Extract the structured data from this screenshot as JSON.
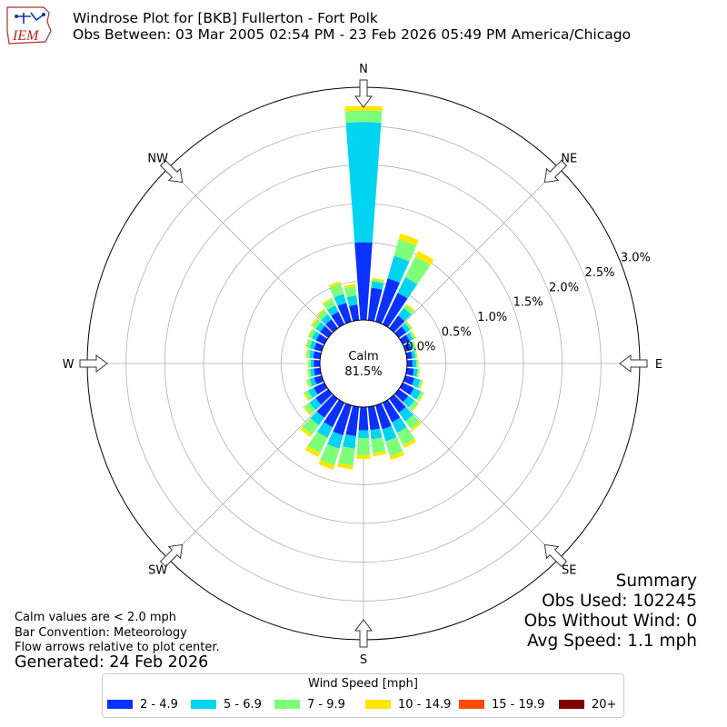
{
  "logo": {
    "text": "IEM"
  },
  "header": {
    "title": "Windrose Plot for [BKB] Fullerton - Fort Polk",
    "subtitle": "Obs Between: 03 Mar 2005 02:54 PM - 23 Feb 2026 05:49 PM America/Chicago"
  },
  "notes": {
    "calm_def": "Calm values are < 2.0 mph",
    "convention": "Bar Convention: Meteorology",
    "arrows": "Flow arrows relative to plot center.",
    "generated": "Generated: 24 Feb 2026"
  },
  "summary": {
    "heading": "Summary",
    "obs_used": "Obs Used: 102245",
    "obs_without_wind": "Obs Without Wind: 0",
    "avg_speed": "Avg Speed: 1.1 mph"
  },
  "chart_data": {
    "type": "windrose",
    "calm_label": "Calm",
    "calm_percent": "81.5%",
    "directions": [
      "N",
      "NE",
      "E",
      "SE",
      "S",
      "SW",
      "W",
      "NW"
    ],
    "radial_ticks": [
      "0.0%",
      "0.5%",
      "1.0%",
      "1.5%",
      "2.0%",
      "2.5%",
      "3.0%"
    ],
    "rmax": 3.0,
    "legend_title": "Wind Speed [mph]",
    "bins": [
      {
        "name": "2 - 4.9",
        "color": "#0a31ff"
      },
      {
        "name": "5 - 6.9",
        "color": "#00d4f0"
      },
      {
        "name": "7 - 9.9",
        "color": "#7dff7a"
      },
      {
        "name": "10 - 14.9",
        "color": "#ffe600"
      },
      {
        "name": "15 - 19.9",
        "color": "#ff4a00"
      },
      {
        "name": "20+",
        "color": "#800000"
      }
    ],
    "sectors": [
      {
        "dir": 0,
        "values": [
          1.0,
          1.55,
          0.15,
          0.06,
          0,
          0
        ]
      },
      {
        "dir": 10,
        "values": [
          0.42,
          0.08,
          0.03,
          0.02,
          0,
          0
        ]
      },
      {
        "dir": 20,
        "values": [
          0.58,
          0.3,
          0.22,
          0.08,
          0,
          0
        ]
      },
      {
        "dir": 30,
        "values": [
          0.45,
          0.22,
          0.3,
          0.08,
          0,
          0
        ]
      },
      {
        "dir": 40,
        "values": [
          0.2,
          0.12,
          0.05,
          0.02,
          0,
          0
        ]
      },
      {
        "dir": 50,
        "values": [
          0.12,
          0.06,
          0.03,
          0.01,
          0,
          0
        ]
      },
      {
        "dir": 60,
        "values": [
          0.1,
          0.05,
          0.03,
          0.01,
          0,
          0
        ]
      },
      {
        "dir": 70,
        "values": [
          0.08,
          0.04,
          0.02,
          0.01,
          0,
          0
        ]
      },
      {
        "dir": 80,
        "values": [
          0.07,
          0.04,
          0.02,
          0.01,
          0,
          0
        ]
      },
      {
        "dir": 90,
        "values": [
          0.07,
          0.05,
          0.02,
          0.01,
          0,
          0
        ]
      },
      {
        "dir": 100,
        "values": [
          0.09,
          0.05,
          0.02,
          0.01,
          0,
          0
        ]
      },
      {
        "dir": 110,
        "values": [
          0.12,
          0.08,
          0.03,
          0.01,
          0,
          0
        ]
      },
      {
        "dir": 120,
        "values": [
          0.16,
          0.1,
          0.04,
          0.01,
          0,
          0
        ]
      },
      {
        "dir": 130,
        "values": [
          0.15,
          0.1,
          0.06,
          0.01,
          0,
          0
        ]
      },
      {
        "dir": 140,
        "values": [
          0.22,
          0.14,
          0.12,
          0.03,
          0,
          0
        ]
      },
      {
        "dir": 150,
        "values": [
          0.28,
          0.15,
          0.18,
          0.04,
          0,
          0
        ]
      },
      {
        "dir": 160,
        "values": [
          0.32,
          0.16,
          0.2,
          0.05,
          0,
          0
        ]
      },
      {
        "dir": 170,
        "values": [
          0.3,
          0.12,
          0.18,
          0.04,
          0,
          0
        ]
      },
      {
        "dir": 180,
        "values": [
          0.3,
          0.1,
          0.22,
          0.05,
          0,
          0
        ]
      },
      {
        "dir": 190,
        "values": [
          0.38,
          0.16,
          0.22,
          0.05,
          0,
          0
        ]
      },
      {
        "dir": 200,
        "values": [
          0.4,
          0.18,
          0.22,
          0.06,
          0,
          0
        ]
      },
      {
        "dir": 210,
        "values": [
          0.35,
          0.15,
          0.22,
          0.06,
          0,
          0
        ]
      },
      {
        "dir": 220,
        "values": [
          0.3,
          0.12,
          0.15,
          0.04,
          0,
          0
        ]
      },
      {
        "dir": 230,
        "values": [
          0.2,
          0.1,
          0.08,
          0.02,
          0,
          0
        ]
      },
      {
        "dir": 240,
        "values": [
          0.15,
          0.08,
          0.05,
          0.02,
          0,
          0
        ]
      },
      {
        "dir": 250,
        "values": [
          0.1,
          0.06,
          0.04,
          0.01,
          0,
          0
        ]
      },
      {
        "dir": 260,
        "values": [
          0.08,
          0.05,
          0.03,
          0.01,
          0,
          0
        ]
      },
      {
        "dir": 270,
        "values": [
          0.08,
          0.04,
          0.03,
          0.01,
          0,
          0
        ]
      },
      {
        "dir": 280,
        "values": [
          0.09,
          0.05,
          0.04,
          0.01,
          0,
          0
        ]
      },
      {
        "dir": 290,
        "values": [
          0.1,
          0.06,
          0.05,
          0.01,
          0,
          0
        ]
      },
      {
        "dir": 300,
        "values": [
          0.12,
          0.06,
          0.05,
          0.01,
          0,
          0
        ]
      },
      {
        "dir": 310,
        "values": [
          0.13,
          0.07,
          0.06,
          0.02,
          0,
          0
        ]
      },
      {
        "dir": 320,
        "values": [
          0.14,
          0.08,
          0.07,
          0.02,
          0,
          0
        ]
      },
      {
        "dir": 330,
        "values": [
          0.18,
          0.09,
          0.09,
          0.02,
          0,
          0
        ]
      },
      {
        "dir": 340,
        "values": [
          0.25,
          0.12,
          0.14,
          0.03,
          0,
          0
        ]
      },
      {
        "dir": 350,
        "values": [
          0.2,
          0.12,
          0.12,
          0.03,
          0,
          0
        ]
      }
    ]
  }
}
